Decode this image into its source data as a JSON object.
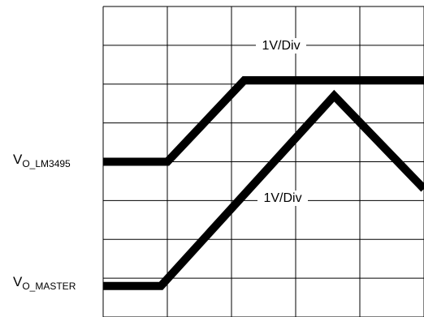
{
  "chart_data": {
    "type": "line",
    "title": "",
    "xlabel": "",
    "ylabel": "",
    "grid": true,
    "grid_divisions": {
      "x": 5,
      "y": 8
    },
    "x_range_div": [
      0,
      5
    ],
    "y_range_div": [
      0,
      8
    ],
    "series": [
      {
        "name": "V_O_LM3495",
        "label_main": "V",
        "label_sub": "O_LM3495",
        "scale_label": "1V/Div",
        "x": [
          0,
          1.0,
          2.2,
          5.0
        ],
        "y": [
          4.0,
          4.0,
          6.1,
          6.1
        ]
      },
      {
        "name": "V_O_MASTER",
        "label_main": "V",
        "label_sub": "O_MASTER",
        "scale_label": "1V/Div",
        "x": [
          0,
          0.9,
          3.6,
          5.0
        ],
        "y": [
          0.8,
          0.8,
          5.7,
          3.3
        ]
      }
    ]
  }
}
